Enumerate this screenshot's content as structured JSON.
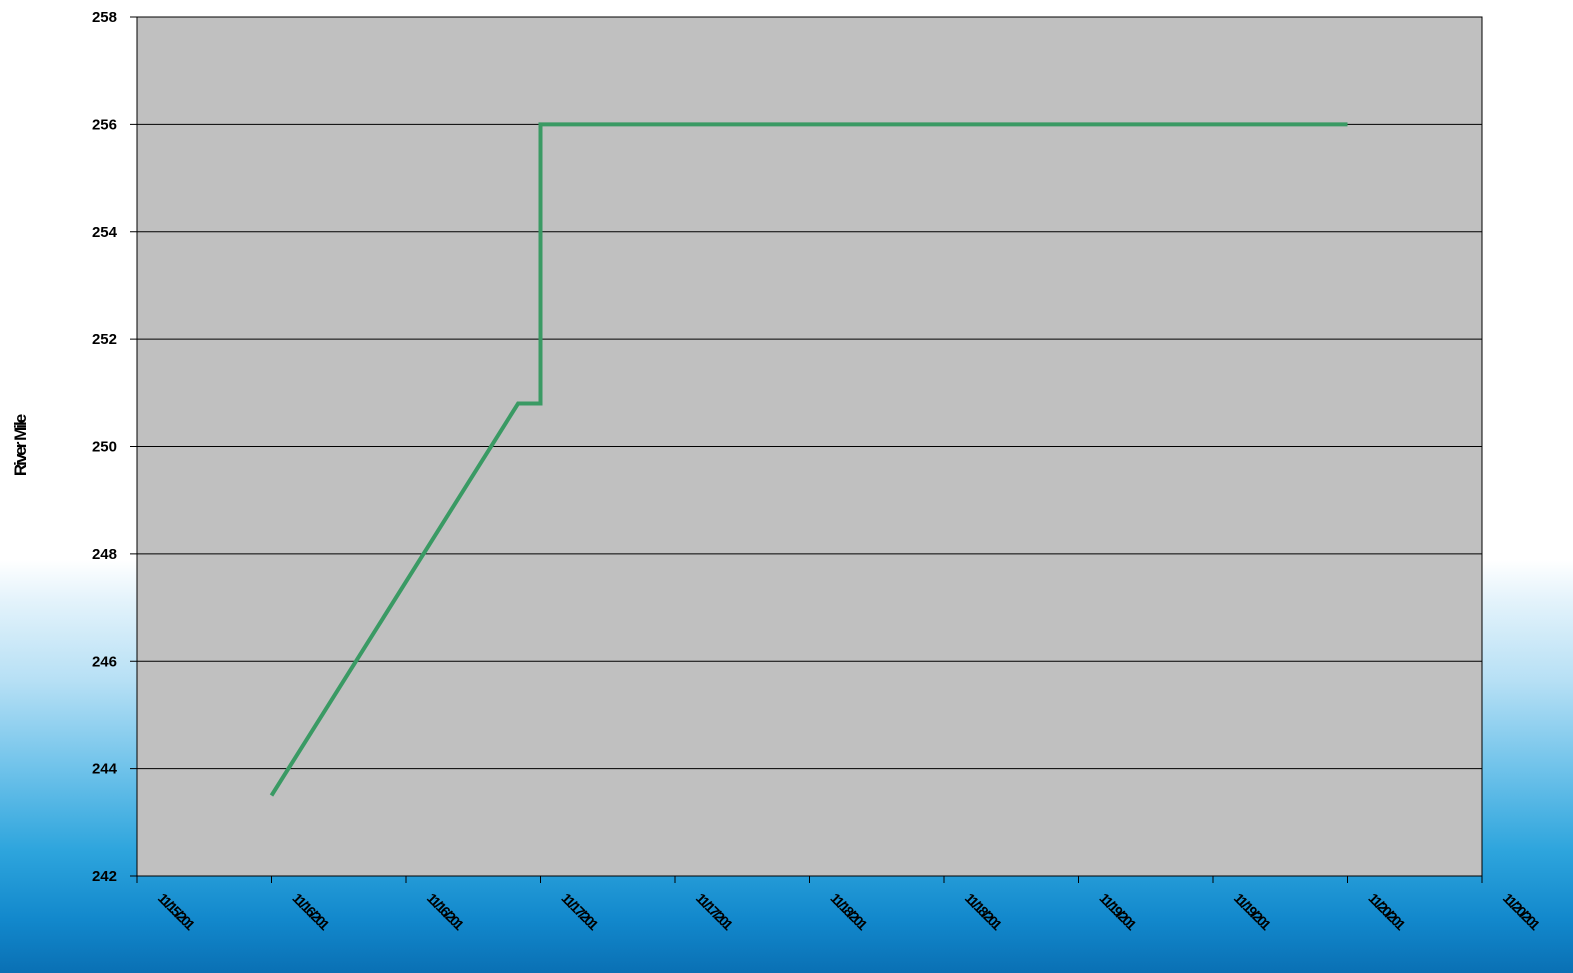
{
  "chart_data": {
    "type": "line",
    "title": "",
    "xlabel": "",
    "ylabel": "River Mile",
    "x_tick_labels": [
      "11/15/201",
      "11/16/201",
      "11/16/201",
      "11/17/201",
      "11/17/201",
      "11/18/201",
      "11/18/201",
      "11/19/201",
      "11/19/201",
      "11/20/201",
      "11/20/201"
    ],
    "ylim": [
      242,
      258
    ],
    "y_ticks": [
      242,
      244,
      246,
      248,
      250,
      252,
      254,
      256,
      258
    ],
    "grid": true,
    "legend": "none",
    "series": [
      {
        "color": "#3a9a64",
        "points": [
          {
            "x": "11/16 00:00",
            "y": 243.5
          },
          {
            "x": "11/16 22:00",
            "y": 250.8
          },
          {
            "x": "11/17 00:00",
            "y": 250.8
          },
          {
            "x": "11/17 00:00",
            "y": 256.0
          },
          {
            "x": "11/20 00:00",
            "y": 256.0
          }
        ]
      }
    ],
    "plot_background": "#c0c0c0"
  }
}
